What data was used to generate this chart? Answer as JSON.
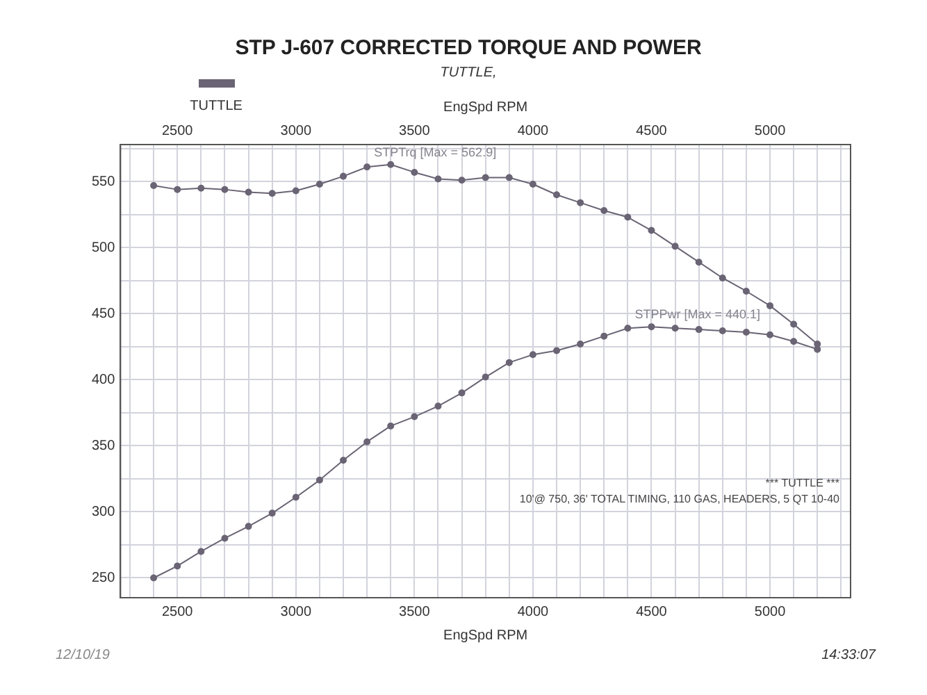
{
  "chart_data": {
    "type": "line",
    "title": "STP J-607 CORRECTED TORQUE AND POWER",
    "subtitle": "TUTTLE,",
    "xlabel": "EngSpd RPM",
    "x2label": "EngSpd RPM",
    "x": [
      2400,
      2500,
      2600,
      2700,
      2800,
      2900,
      3000,
      3100,
      3200,
      3300,
      3400,
      3500,
      3600,
      3700,
      3800,
      3900,
      4000,
      4100,
      4200,
      4300,
      4400,
      4500,
      4600,
      4700,
      4800,
      4900,
      5000,
      5100,
      5200
    ],
    "series": [
      {
        "name": "STPTrq [Max = 562.9]",
        "color": "#6a6474",
        "values": [
          547,
          544,
          545,
          544,
          542,
          541,
          543,
          548,
          554,
          561,
          562.9,
          557,
          552,
          551,
          553,
          553,
          548,
          540,
          534,
          528,
          523,
          513,
          501,
          489,
          477,
          467,
          456,
          442,
          427
        ]
      },
      {
        "name": "STPPwr [Max = 440.1]",
        "color": "#6a6474",
        "values": [
          250,
          259,
          270,
          280,
          289,
          299,
          311,
          324,
          339,
          353,
          365,
          372,
          380,
          390,
          402,
          413,
          419,
          422,
          427,
          433,
          439,
          440.1,
          439,
          438,
          437,
          436,
          434,
          429,
          423
        ]
      }
    ],
    "xlim": [
      2260,
      5340
    ],
    "x2lim": [
      2260,
      5340
    ],
    "ylim": [
      235,
      578
    ],
    "xticks": [
      {
        "value": 2300,
        "label": null
      },
      {
        "value": 2400,
        "label": null
      },
      2500,
      {
        "value": 2600,
        "label": null
      },
      {
        "value": 2700,
        "label": null
      },
      {
        "value": 2800,
        "label": null
      },
      {
        "value": 2900,
        "label": null
      },
      3000,
      {
        "value": 3100,
        "label": null
      },
      {
        "value": 3200,
        "label": null
      },
      {
        "value": 3300,
        "label": null
      },
      {
        "value": 3400,
        "label": null
      },
      3500,
      {
        "value": 3600,
        "label": null
      },
      {
        "value": 3700,
        "label": null
      },
      {
        "value": 3800,
        "label": null
      },
      {
        "value": 3900,
        "label": null
      },
      4000,
      {
        "value": 4100,
        "label": null
      },
      {
        "value": 4200,
        "label": null
      },
      {
        "value": 4300,
        "label": null
      },
      {
        "value": 4400,
        "label": null
      },
      4500,
      {
        "value": 4600,
        "label": null
      },
      {
        "value": 4700,
        "label": null
      },
      {
        "value": 4800,
        "label": null
      },
      {
        "value": 4900,
        "label": null
      },
      5000,
      {
        "value": 5100,
        "label": null
      },
      {
        "value": 5200,
        "label": null
      },
      {
        "value": 5300,
        "label": null
      }
    ],
    "x2ticks": [
      2500,
      3000,
      3500,
      4000,
      4500,
      5000
    ],
    "yticks": [
      250,
      {
        "value": 275,
        "label": null
      },
      300,
      {
        "value": 325,
        "label": null
      },
      350,
      {
        "value": 375,
        "label": null
      },
      400,
      {
        "value": 425,
        "label": null
      },
      450,
      {
        "value": 475,
        "label": null
      },
      500,
      {
        "value": 525,
        "label": null
      },
      550,
      {
        "value": 575,
        "label": null
      }
    ],
    "annotations": [
      "TUTTLE",
      "*** TUTTLE ***",
      "10'@ 750, 36' TOTAL TIMING, 110 GAS, HEADERS, 5 QT 10-40",
      "12/10/19",
      "14:33:07"
    ],
    "grid": true,
    "marker": "circle",
    "line_style": "solid"
  }
}
